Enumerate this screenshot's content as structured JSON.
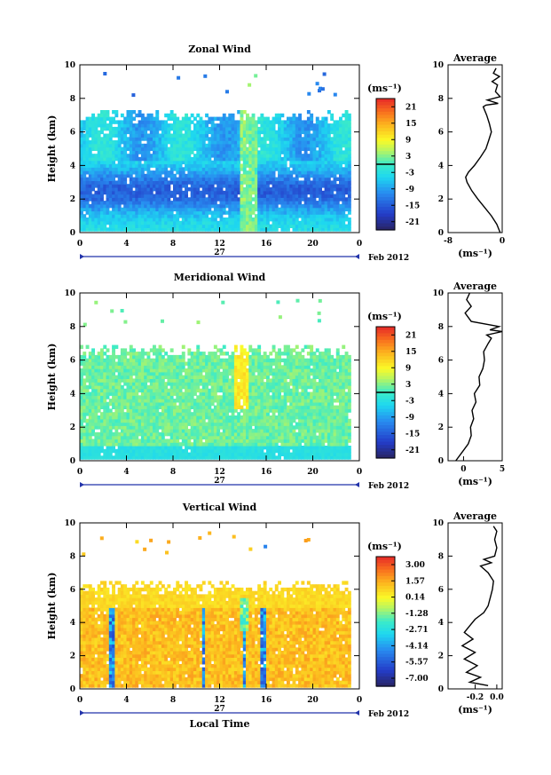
{
  "figure": {
    "xlabel_bottom": "Local Time",
    "date_label": "Feb 2012",
    "day_label": "27",
    "height_label": "Height (km)",
    "unit_label": "(ms⁻¹)",
    "average_title": "Average"
  },
  "chart_data": [
    {
      "type": "heatmap",
      "title": "Zonal Wind",
      "xlabel": "",
      "ylabel": "Height (km)",
      "x_ticks": [
        "0",
        "4",
        "8",
        "12",
        "16",
        "20",
        "0"
      ],
      "x_range": [
        0,
        24
      ],
      "y_ticks": [
        "0",
        "2",
        "4",
        "6",
        "8",
        "10"
      ],
      "y_range": [
        0,
        10
      ],
      "colorbar_ticks": [
        "21",
        "15",
        "9",
        "3",
        "-3",
        "-9",
        "-15",
        "-21"
      ],
      "colorbar_range": [
        -24,
        24
      ],
      "colorbar_zero_line": 0,
      "field": {
        "data_top_km": 7.3,
        "wind_base": -3,
        "jet_center_km": 2.4,
        "jet_min": -15,
        "upper_value": -6,
        "contour_level": 0
      },
      "average": {
        "title": "Average",
        "xlabel": "(ms⁻¹)",
        "x_ticks": [
          "-8",
          "0"
        ],
        "x_range": [
          -8,
          0
        ],
        "y_range": [
          0,
          10
        ],
        "profile": [
          [
            -0.3,
            0.0
          ],
          [
            -0.8,
            0.5
          ],
          [
            -1.6,
            1.0
          ],
          [
            -2.6,
            1.5
          ],
          [
            -3.6,
            2.0
          ],
          [
            -4.5,
            2.5
          ],
          [
            -5.2,
            3.0
          ],
          [
            -5.4,
            3.3
          ],
          [
            -5.0,
            3.6
          ],
          [
            -4.1,
            4.0
          ],
          [
            -3.2,
            4.5
          ],
          [
            -2.4,
            5.0
          ],
          [
            -2.0,
            5.5
          ],
          [
            -1.6,
            6.0
          ],
          [
            -1.9,
            6.5
          ],
          [
            -2.3,
            7.0
          ],
          [
            -2.8,
            7.5
          ],
          [
            -2.4,
            7.6
          ],
          [
            -0.6,
            7.7
          ],
          [
            -2.2,
            7.9
          ],
          [
            -0.3,
            8.1
          ],
          [
            -1.0,
            8.4
          ],
          [
            -0.7,
            8.8
          ],
          [
            -1.5,
            9.0
          ],
          [
            -0.4,
            9.3
          ],
          [
            -1.3,
            9.5
          ],
          [
            -0.9,
            9.8
          ]
        ]
      }
    },
    {
      "type": "heatmap",
      "title": "Meridional Wind",
      "xlabel": "",
      "ylabel": "Height (km)",
      "x_ticks": [
        "0",
        "4",
        "8",
        "12",
        "16",
        "20",
        "0"
      ],
      "x_range": [
        0,
        24
      ],
      "y_ticks": [
        "0",
        "2",
        "4",
        "6",
        "8",
        "10"
      ],
      "y_range": [
        0,
        10
      ],
      "colorbar_ticks": [
        "21",
        "15",
        "9",
        "3",
        "-3",
        "-9",
        "-15",
        "-21"
      ],
      "colorbar_range": [
        -24,
        24
      ],
      "colorbar_zero_line": 0,
      "field": {
        "data_top_km": 6.9,
        "wind_base": 0,
        "core_value": 2,
        "contour_level": 0
      },
      "average": {
        "title": "Average",
        "xlabel": "(ms⁻¹)",
        "x_ticks": [
          "0",
          "5"
        ],
        "x_range": [
          -2,
          5
        ],
        "y_range": [
          0,
          10
        ],
        "profile": [
          [
            -1.0,
            0.0
          ],
          [
            -0.2,
            0.5
          ],
          [
            0.6,
            1.0
          ],
          [
            1.0,
            1.5
          ],
          [
            0.9,
            2.0
          ],
          [
            1.3,
            2.5
          ],
          [
            1.1,
            3.0
          ],
          [
            1.6,
            3.5
          ],
          [
            1.4,
            4.0
          ],
          [
            2.1,
            4.5
          ],
          [
            2.0,
            5.0
          ],
          [
            2.5,
            5.5
          ],
          [
            2.7,
            6.0
          ],
          [
            2.6,
            6.5
          ],
          [
            3.2,
            7.0
          ],
          [
            3.6,
            7.3
          ],
          [
            3.0,
            7.5
          ],
          [
            5.0,
            7.7
          ],
          [
            3.4,
            7.8
          ],
          [
            4.6,
            8.0
          ],
          [
            1.0,
            8.3
          ],
          [
            0.2,
            8.8
          ],
          [
            1.0,
            9.2
          ],
          [
            0.4,
            9.6
          ],
          [
            0.8,
            10.0
          ]
        ]
      }
    },
    {
      "type": "heatmap",
      "title": "Vertical Wind",
      "xlabel": "Local Time",
      "ylabel": "Height (km)",
      "x_ticks": [
        "0",
        "4",
        "8",
        "12",
        "16",
        "20",
        "0"
      ],
      "x_range": [
        0,
        24
      ],
      "y_ticks": [
        "0",
        "2",
        "4",
        "6",
        "8",
        "10"
      ],
      "y_range": [
        0,
        10
      ],
      "colorbar_ticks": [
        "3.00",
        "1.57",
        "0.14",
        "-1.28",
        "-2.71",
        "-4.14",
        "-5.57",
        "-7.00"
      ],
      "colorbar_range": [
        -7.7,
        3.7
      ],
      "field": {
        "data_top_km": 6.5,
        "low_value": 1.2,
        "upper_value": 0.7,
        "downdraft_hours": [
          2.7,
          10.5,
          14.0,
          15.6
        ],
        "downdraft_min": -6
      },
      "average": {
        "title": "Average",
        "xlabel": "(ms⁻¹)",
        "x_ticks": [
          "-0.2",
          "0.0"
        ],
        "x_range": [
          -0.45,
          0.05
        ],
        "y_range": [
          0,
          10
        ],
        "profile": [
          [
            -0.08,
            0.2
          ],
          [
            -0.25,
            0.4
          ],
          [
            -0.15,
            0.7
          ],
          [
            -0.28,
            1.0
          ],
          [
            -0.18,
            1.4
          ],
          [
            -0.3,
            1.8
          ],
          [
            -0.2,
            2.2
          ],
          [
            -0.32,
            2.6
          ],
          [
            -0.22,
            3.0
          ],
          [
            -0.3,
            3.4
          ],
          [
            -0.25,
            3.8
          ],
          [
            -0.2,
            4.2
          ],
          [
            -0.12,
            4.6
          ],
          [
            -0.08,
            5.0
          ],
          [
            -0.06,
            5.5
          ],
          [
            -0.04,
            6.0
          ],
          [
            -0.03,
            6.5
          ],
          [
            -0.08,
            7.0
          ],
          [
            -0.15,
            7.4
          ],
          [
            -0.05,
            7.6
          ],
          [
            -0.12,
            7.8
          ],
          [
            -0.02,
            8.0
          ],
          [
            0.0,
            8.5
          ],
          [
            -0.02,
            9.0
          ],
          [
            0.0,
            9.5
          ],
          [
            -0.03,
            9.8
          ]
        ]
      }
    }
  ]
}
